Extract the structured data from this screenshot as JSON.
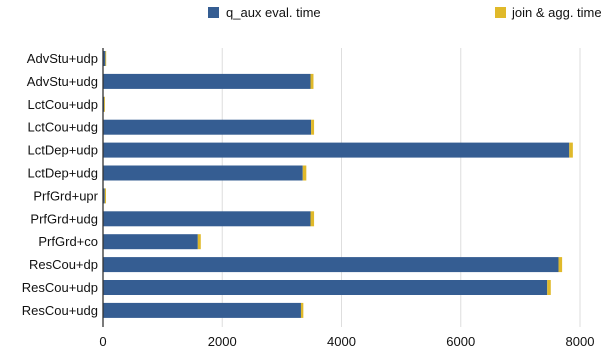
{
  "chart_data": {
    "type": "bar",
    "orientation": "horizontal",
    "stacked": true,
    "categories": [
      "AdvStu+udp",
      "AdvStu+udg",
      "LctCou+udp",
      "LctCou+udg",
      "LctDep+udp",
      "LctDep+udg",
      "PrfGrd+upr",
      "PrfGrd+udg",
      "PrfGrd+co",
      "ResCou+dp",
      "ResCou+udp",
      "ResCou+udg"
    ],
    "series": [
      {
        "name": "q_aux eval. time",
        "color": "#355d92",
        "values": [
          40,
          3480,
          20,
          3490,
          7820,
          3350,
          30,
          3480,
          1590,
          7640,
          7450,
          3320
        ]
      },
      {
        "name": "join & agg. time",
        "color": "#e0b92a",
        "values": [
          10,
          50,
          10,
          50,
          60,
          60,
          20,
          60,
          50,
          60,
          60,
          40
        ]
      }
    ],
    "xlim": [
      0,
      8000
    ],
    "xticks": [
      0,
      2000,
      4000,
      6000,
      8000
    ],
    "xlabel": "",
    "ylabel": "",
    "title": "",
    "legend_position": "top",
    "grid": "vertical"
  }
}
